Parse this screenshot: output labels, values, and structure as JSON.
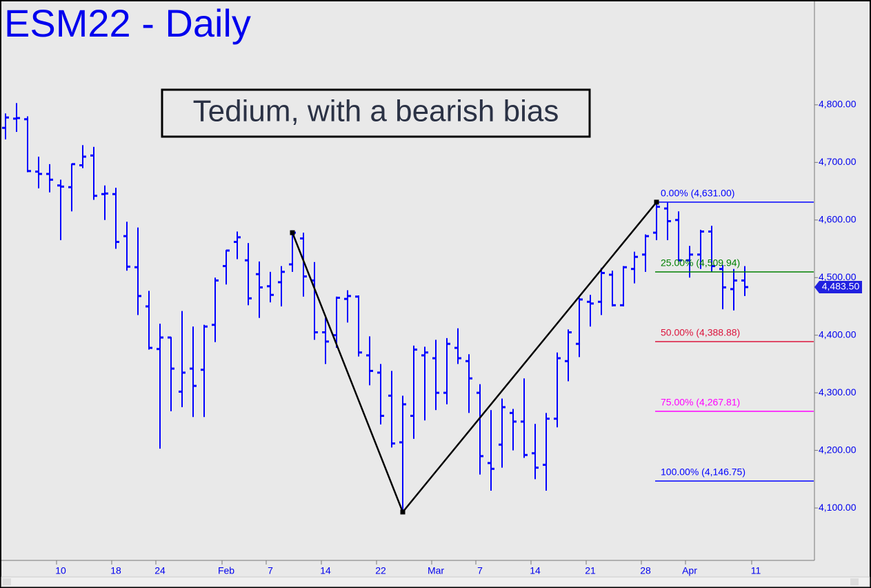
{
  "chart_data": {
    "type": "ohlc",
    "title": "ESM22 - Daily",
    "annotation": "Tedium, with a bearish bias",
    "color": "#0000ff",
    "categories": [
      null,
      null,
      null,
      null,
      null,
      "10",
      null,
      null,
      null,
      null,
      "18",
      null,
      null,
      null,
      "24",
      null,
      null,
      null,
      null,
      null,
      "Feb",
      null,
      null,
      null,
      "7",
      null,
      null,
      null,
      null,
      "14",
      null,
      null,
      null,
      null,
      "22",
      null,
      null,
      null,
      null,
      "Mar",
      null,
      null,
      null,
      "7",
      null,
      null,
      null,
      null,
      "14",
      null,
      null,
      null,
      null,
      "21",
      null,
      null,
      null,
      null,
      "28",
      null,
      null,
      null,
      "Apr",
      null,
      null,
      null,
      null,
      null,
      "11"
    ],
    "open": [
      4760,
      4776,
      4775,
      4684,
      4680,
      4660,
      4657,
      4695,
      4712,
      4645,
      4645,
      4572,
      4518,
      4450,
      4376,
      4396,
      4302,
      4342,
      4340,
      4418,
      4520,
      4562,
      4530,
      4506,
      4485,
      4492,
      4523,
      4568,
      4495,
      4405,
      4400,
      4463,
      4467,
      4365,
      4335,
      4295,
      4214,
      4260,
      4365,
      4360,
      4300,
      4378,
      4355,
      4300,
      4178,
      4210,
      4265,
      4250,
      4195,
      4175,
      4255,
      4355,
      4385,
      4458,
      4458,
      4505,
      4452,
      4515,
      4540,
      4578,
      4620,
      4600,
      4530,
      4540,
      4580,
      4515,
      4480,
      4495,
      null
    ],
    "high": [
      4785,
      4803,
      4780,
      4710,
      4697,
      4670,
      4698,
      4730,
      4727,
      4660,
      4656,
      4597,
      4587,
      4477,
      4420,
      4397,
      4442,
      4415,
      4418,
      4500,
      4548,
      4580,
      4560,
      4528,
      4510,
      4520,
      4582,
      4578,
      4527,
      4430,
      4467,
      4478,
      4469,
      4398,
      4350,
      4338,
      4295,
      4382,
      4380,
      4392,
      4395,
      4412,
      4367,
      4315,
      4270,
      4290,
      4272,
      4325,
      4246,
      4265,
      4370,
      4410,
      4465,
      4470,
      4517,
      4512,
      4520,
      4545,
      4575,
      4631,
      4630,
      4615,
      4555,
      4583,
      4590,
      4522,
      4515,
      4520,
      null
    ],
    "low": [
      4740,
      4753,
      4683,
      4655,
      4648,
      4565,
      4615,
      4690,
      4635,
      4600,
      4550,
      4512,
      4435,
      4375,
      4203,
      4268,
      4275,
      4258,
      4258,
      4388,
      4488,
      4532,
      4452,
      4430,
      4457,
      4450,
      4510,
      4467,
      4392,
      4350,
      4378,
      4422,
      4363,
      4313,
      4245,
      4205,
      4093,
      4220,
      4252,
      4270,
      4280,
      4350,
      4265,
      4158,
      4130,
      4170,
      4200,
      4187,
      4150,
      4130,
      4240,
      4320,
      4362,
      4415,
      4435,
      4450,
      4450,
      4490,
      4510,
      4565,
      4565,
      4528,
      4500,
      4515,
      4510,
      4445,
      4443,
      4468,
      null
    ],
    "close": [
      4778,
      4777,
      4685,
      4680,
      4670,
      4658,
      4697,
      4710,
      4642,
      4646,
      4562,
      4519,
      4468,
      4378,
      4396,
      4342,
      4335,
      4312,
      4415,
      4495,
      4547,
      4570,
      4464,
      4483,
      4470,
      4510,
      4578,
      4502,
      4405,
      4389,
      4465,
      4468,
      4370,
      4338,
      4260,
      4212,
      4280,
      4375,
      4370,
      4300,
      4385,
      4360,
      4325,
      4190,
      4168,
      4275,
      4250,
      4192,
      4170,
      4255,
      4360,
      4405,
      4462,
      4455,
      4508,
      4452,
      4518,
      4536,
      4572,
      4623,
      4598,
      4530,
      4540,
      4580,
      4520,
      4483,
      4495,
      4483.5,
      null
    ],
    "ylim": [
      4009,
      4976
    ],
    "yticks": [
      {
        "value": 4100,
        "label": "4,100.00"
      },
      {
        "value": 4200,
        "label": "4,200.00"
      },
      {
        "value": 4300,
        "label": "4,300.00"
      },
      {
        "value": 4400,
        "label": "4,400.00"
      },
      {
        "value": 4500,
        "label": "4,500.00"
      },
      {
        "value": 4600,
        "label": "4,600.00"
      },
      {
        "value": 4700,
        "label": "4,700.00"
      },
      {
        "value": 4800,
        "label": "4,800.00"
      }
    ],
    "last_price": {
      "value": 4483.5,
      "label": "4,483.50"
    },
    "zigzag": {
      "x": [
        26,
        36,
        59
      ],
      "y": [
        4578,
        4093,
        4631
      ]
    },
    "fib_levels": [
      {
        "label": "0.00% (4,631.00)",
        "value": 4631,
        "color": "#0000ff"
      },
      {
        "label": "25.00% (4,509.94)",
        "value": 4509.94,
        "color": "#008000"
      },
      {
        "label": "50.00% (4,388.88)",
        "value": 4388.88,
        "color": "#dc143c"
      },
      {
        "label": "75.00% (4,267.81)",
        "value": 4267.81,
        "color": "#ff00ff"
      },
      {
        "label": "100.00% (4,146.75)",
        "value": 4146.75,
        "color": "#0000ff"
      }
    ]
  }
}
